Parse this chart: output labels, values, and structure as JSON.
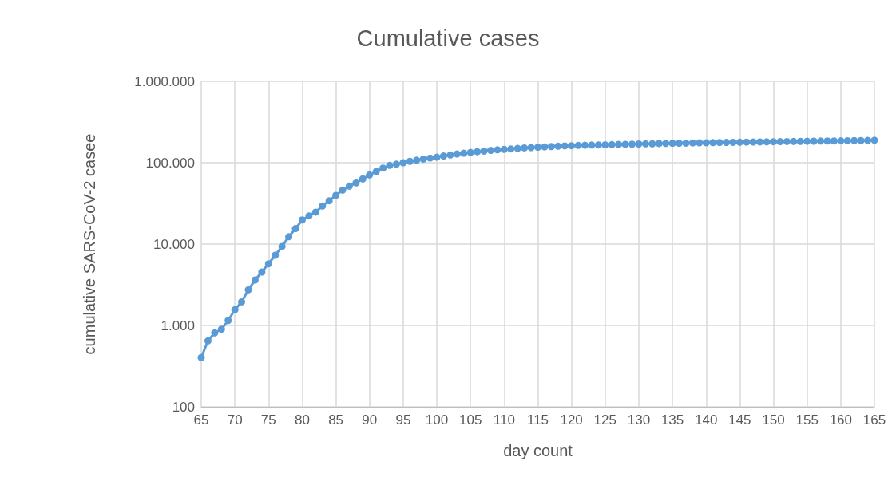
{
  "chart_data": {
    "type": "line",
    "title": "Cumulative cases",
    "xlabel": "day count",
    "ylabel": "cumulative SARS-CoV-2 casee",
    "x": [
      65,
      66,
      67,
      68,
      69,
      70,
      71,
      72,
      73,
      74,
      75,
      76,
      77,
      78,
      79,
      80,
      81,
      82,
      83,
      84,
      85,
      86,
      87,
      88,
      89,
      90,
      91,
      92,
      93,
      94,
      95,
      96,
      97,
      98,
      99,
      100,
      101,
      102,
      103,
      104,
      105,
      106,
      107,
      108,
      109,
      110,
      111,
      112,
      113,
      114,
      115,
      116,
      117,
      118,
      119,
      120,
      121,
      122,
      123,
      124,
      125,
      126,
      127,
      128,
      129,
      130,
      131,
      132,
      133,
      134,
      135,
      136,
      137,
      138,
      139,
      140,
      141,
      142,
      143,
      144,
      145,
      146,
      147,
      148,
      149,
      150,
      151,
      152,
      153,
      154,
      155,
      156,
      157,
      158,
      159,
      160,
      161,
      162,
      163,
      164,
      165
    ],
    "series": [
      {
        "color": "#5b9bd5",
        "values": [
          403,
          647,
          811,
          899,
          1150,
          1560,
          1950,
          2740,
          3620,
          4540,
          5730,
          7290,
          9350,
          12300,
          15500,
          19800,
          22200,
          24700,
          29400,
          34100,
          39700,
          46100,
          51600,
          56500,
          63300,
          70800,
          78000,
          86000,
          92700,
          96000,
          100000,
          104000,
          107500,
          111000,
          114000,
          117000,
          121000,
          124500,
          128000,
          131000,
          134000,
          136500,
          139000,
          141500,
          144000,
          146000,
          148000,
          150000,
          152000,
          153500,
          155000,
          156500,
          158000,
          159500,
          161000,
          162000,
          163000,
          164000,
          165000,
          165500,
          166000,
          167000,
          168000,
          168500,
          169000,
          170000,
          170500,
          171000,
          172000,
          172500,
          173000,
          173500,
          174000,
          175000,
          175500,
          176000,
          176500,
          177000,
          177500,
          178000,
          178500,
          179000,
          179500,
          180000,
          180500,
          181000,
          181500,
          182000,
          182500,
          183000,
          183500,
          184000,
          184500,
          185000,
          185500,
          186000,
          186500,
          187000,
          187500,
          188000,
          189000
        ]
      }
    ],
    "xlim": [
      65,
      165
    ],
    "xticks": [
      65,
      70,
      75,
      80,
      85,
      90,
      95,
      100,
      105,
      110,
      115,
      120,
      125,
      130,
      135,
      140,
      145,
      150,
      155,
      160,
      165
    ],
    "ylim": [
      100,
      1000000
    ],
    "yticks": [
      100,
      {
        "value": 1000,
        "label": "1.000"
      },
      {
        "value": 10000,
        "label": "10.000"
      },
      {
        "value": 100000,
        "label": "100.000"
      },
      {
        "value": 1000000,
        "label": "1.000.000"
      }
    ],
    "log": true,
    "grid": true,
    "marker": "circle",
    "line_style": "solid"
  }
}
